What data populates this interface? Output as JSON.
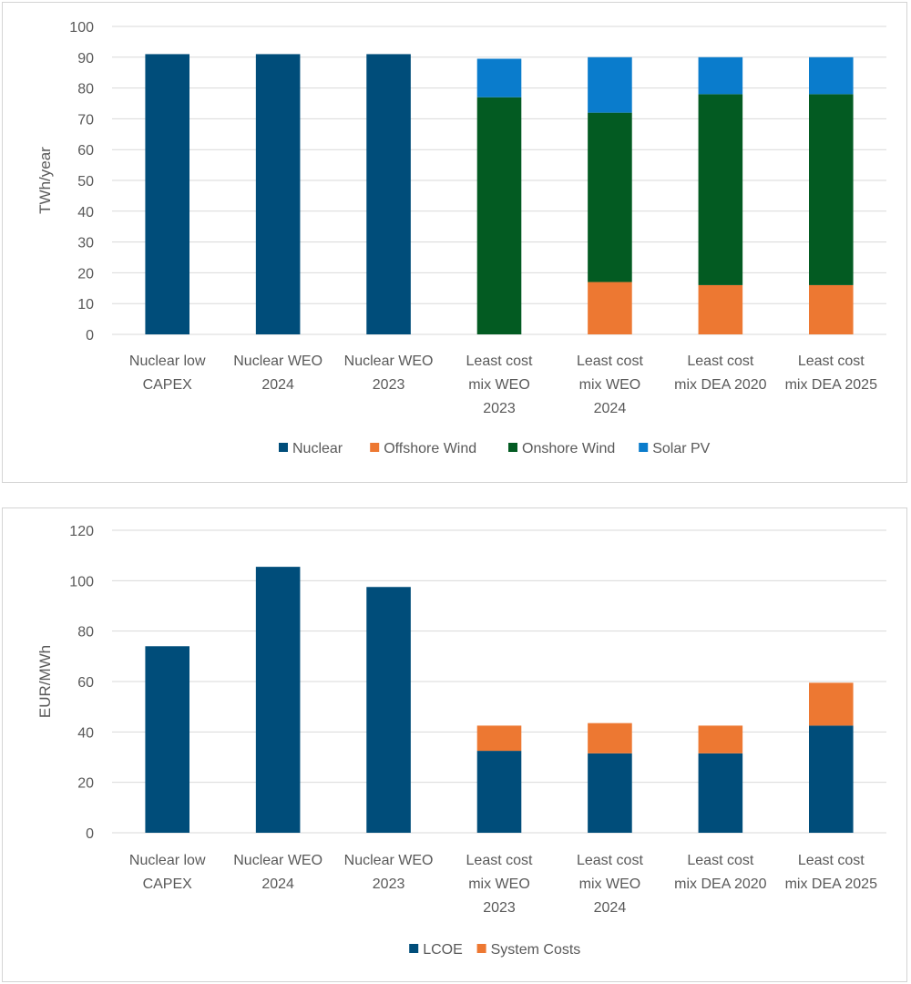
{
  "chart_data": [
    {
      "type": "bar",
      "stacked": true,
      "title": "",
      "xlabel": "",
      "ylabel": "TWh/year",
      "ylim": [
        0,
        100
      ],
      "yticks": [
        0,
        10,
        20,
        30,
        40,
        50,
        60,
        70,
        80,
        90,
        100
      ],
      "grid": true,
      "legend_position": "bottom",
      "categories": [
        [
          "Nuclear low",
          "CAPEX"
        ],
        [
          "Nuclear WEO",
          "2024"
        ],
        [
          "Nuclear WEO",
          "2023"
        ],
        [
          "Least cost",
          "mix WEO",
          "2023"
        ],
        [
          "Least cost",
          "mix WEO",
          "2024"
        ],
        [
          "Least cost",
          "mix DEA 2020"
        ],
        [
          "Least cost",
          "mix DEA 2025"
        ]
      ],
      "series": [
        {
          "name": "Nuclear",
          "color": "#004d7a",
          "values": [
            91,
            91,
            91,
            0,
            0,
            0,
            0
          ]
        },
        {
          "name": "Offshore Wind",
          "color": "#ed7832",
          "values": [
            0,
            0,
            0,
            0,
            17,
            16,
            16
          ]
        },
        {
          "name": "Onshore Wind",
          "color": "#035b22",
          "values": [
            0,
            0,
            0,
            77,
            55,
            62,
            62
          ]
        },
        {
          "name": "Solar PV",
          "color": "#0a7ccc",
          "values": [
            0,
            0,
            0,
            12.5,
            18,
            12,
            12
          ]
        }
      ]
    },
    {
      "type": "bar",
      "stacked": true,
      "title": "",
      "xlabel": "",
      "ylabel": "EUR/MWh",
      "ylim": [
        0,
        120
      ],
      "yticks": [
        0,
        20,
        40,
        60,
        80,
        100,
        120
      ],
      "grid": true,
      "legend_position": "bottom",
      "categories": [
        [
          "Nuclear low",
          "CAPEX"
        ],
        [
          "Nuclear WEO",
          "2024"
        ],
        [
          "Nuclear WEO",
          "2023"
        ],
        [
          "Least cost",
          "mix WEO",
          "2023"
        ],
        [
          "Least cost",
          "mix WEO",
          "2024"
        ],
        [
          "Least cost",
          "mix DEA 2020"
        ],
        [
          "Least cost",
          "mix DEA 2025"
        ]
      ],
      "series": [
        {
          "name": "LCOE",
          "color": "#004d7a",
          "values": [
            74,
            105.5,
            97.5,
            32.5,
            31.5,
            31.5,
            42.5
          ]
        },
        {
          "name": "System Costs",
          "color": "#ed7832",
          "values": [
            0,
            0,
            0,
            10,
            12,
            11,
            17
          ]
        }
      ]
    }
  ]
}
